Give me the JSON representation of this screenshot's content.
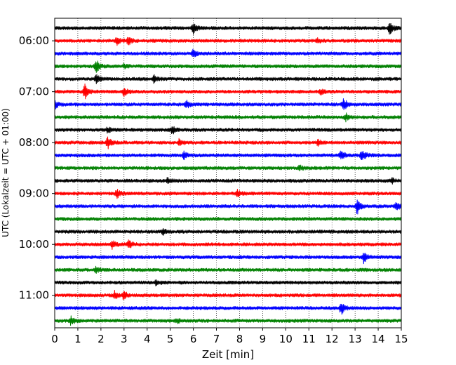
{
  "chart_data": {
    "type": "line",
    "title": "",
    "xlabel": "Zeit  [min]",
    "ylabel": "UTC (Lokalzeit = UTC + 01:00)",
    "xlim": [
      0,
      15
    ],
    "xticks": [
      0,
      1,
      2,
      3,
      4,
      5,
      6,
      7,
      8,
      9,
      10,
      11,
      12,
      13,
      14,
      15
    ],
    "x_grid": "dotted vertical lines at each minute",
    "start_time_utc": "05:45",
    "end_time_utc": "11:45",
    "trace_minutes": 15,
    "row_labels": [
      {
        "trace_index": 1,
        "text": "06:00"
      },
      {
        "trace_index": 5,
        "text": "07:00"
      },
      {
        "trace_index": 9,
        "text": "08:00"
      },
      {
        "trace_index": 13,
        "text": "09:00"
      },
      {
        "trace_index": 17,
        "text": "10:00"
      },
      {
        "trace_index": 21,
        "text": "11:00"
      }
    ],
    "color_cycle": [
      "#000000",
      "#ff0000",
      "#0000ff",
      "#008000"
    ],
    "series": [
      {
        "start": "05:45",
        "color": "#000000",
        "events": [
          {
            "t": 6.0,
            "a": 0.85
          },
          {
            "t": 14.5,
            "a": 1.0
          }
        ]
      },
      {
        "start": "06:00",
        "color": "#ff0000",
        "events": [
          {
            "t": 2.7,
            "a": 0.6
          },
          {
            "t": 3.2,
            "a": 0.6
          },
          {
            "t": 11.4,
            "a": 0.35
          }
        ]
      },
      {
        "start": "06:15",
        "color": "#0000ff",
        "events": [
          {
            "t": 6.0,
            "a": 0.5
          }
        ]
      },
      {
        "start": "06:30",
        "color": "#008000",
        "events": [
          {
            "t": 1.8,
            "a": 1.0
          },
          {
            "t": 3.0,
            "a": 0.3
          }
        ]
      },
      {
        "start": "06:45",
        "color": "#000000",
        "events": [
          {
            "t": 1.8,
            "a": 0.6
          },
          {
            "t": 4.3,
            "a": 0.5
          }
        ]
      },
      {
        "start": "07:00",
        "color": "#ff0000",
        "events": [
          {
            "t": 1.3,
            "a": 1.1
          },
          {
            "t": 3.0,
            "a": 0.6
          },
          {
            "t": 11.5,
            "a": 0.4
          }
        ]
      },
      {
        "start": "07:15",
        "color": "#0000ff",
        "events": [
          {
            "t": 0.0,
            "a": 0.7
          },
          {
            "t": 5.7,
            "a": 0.6
          },
          {
            "t": 12.5,
            "a": 1.0
          }
        ]
      },
      {
        "start": "07:30",
        "color": "#008000",
        "events": [
          {
            "t": 12.6,
            "a": 0.5
          }
        ]
      },
      {
        "start": "07:45",
        "color": "#000000",
        "events": [
          {
            "t": 2.3,
            "a": 0.35
          },
          {
            "t": 5.1,
            "a": 0.6
          }
        ]
      },
      {
        "start": "08:00",
        "color": "#ff0000",
        "events": [
          {
            "t": 2.3,
            "a": 0.9
          },
          {
            "t": 5.4,
            "a": 0.6
          },
          {
            "t": 11.4,
            "a": 0.4
          }
        ]
      },
      {
        "start": "08:15",
        "color": "#0000ff",
        "events": [
          {
            "t": 5.6,
            "a": 0.5
          },
          {
            "t": 12.4,
            "a": 0.6
          },
          {
            "t": 13.3,
            "a": 0.95
          }
        ]
      },
      {
        "start": "08:30",
        "color": "#008000",
        "events": [
          {
            "t": 10.6,
            "a": 0.35
          }
        ]
      },
      {
        "start": "08:45",
        "color": "#000000",
        "events": [
          {
            "t": 4.9,
            "a": 0.4
          },
          {
            "t": 14.6,
            "a": 0.35
          }
        ]
      },
      {
        "start": "09:00",
        "color": "#ff0000",
        "events": [
          {
            "t": 2.7,
            "a": 0.6
          },
          {
            "t": 7.9,
            "a": 0.5
          }
        ]
      },
      {
        "start": "09:15",
        "color": "#0000ff",
        "events": [
          {
            "t": 13.1,
            "a": 1.1
          },
          {
            "t": 14.8,
            "a": 0.65
          }
        ]
      },
      {
        "start": "09:30",
        "color": "#008000",
        "events": []
      },
      {
        "start": "09:45",
        "color": "#000000",
        "events": [
          {
            "t": 4.7,
            "a": 0.4
          }
        ]
      },
      {
        "start": "10:00",
        "color": "#ff0000",
        "events": [
          {
            "t": 2.5,
            "a": 0.6
          },
          {
            "t": 3.2,
            "a": 0.65
          }
        ]
      },
      {
        "start": "10:15",
        "color": "#0000ff",
        "events": [
          {
            "t": 13.4,
            "a": 1.0
          }
        ]
      },
      {
        "start": "10:30",
        "color": "#008000",
        "events": [
          {
            "t": 1.8,
            "a": 0.4
          }
        ]
      },
      {
        "start": "10:45",
        "color": "#000000",
        "events": [
          {
            "t": 4.4,
            "a": 0.4
          }
        ]
      },
      {
        "start": "11:00",
        "color": "#ff0000",
        "events": [
          {
            "t": 2.6,
            "a": 0.6
          },
          {
            "t": 3.0,
            "a": 0.6
          }
        ]
      },
      {
        "start": "11:15",
        "color": "#0000ff",
        "events": [
          {
            "t": 12.4,
            "a": 0.95
          }
        ]
      },
      {
        "start": "11:30",
        "color": "#008000",
        "events": [
          {
            "t": 0.7,
            "a": 0.6
          },
          {
            "t": 5.3,
            "a": 0.3
          }
        ]
      }
    ]
  }
}
